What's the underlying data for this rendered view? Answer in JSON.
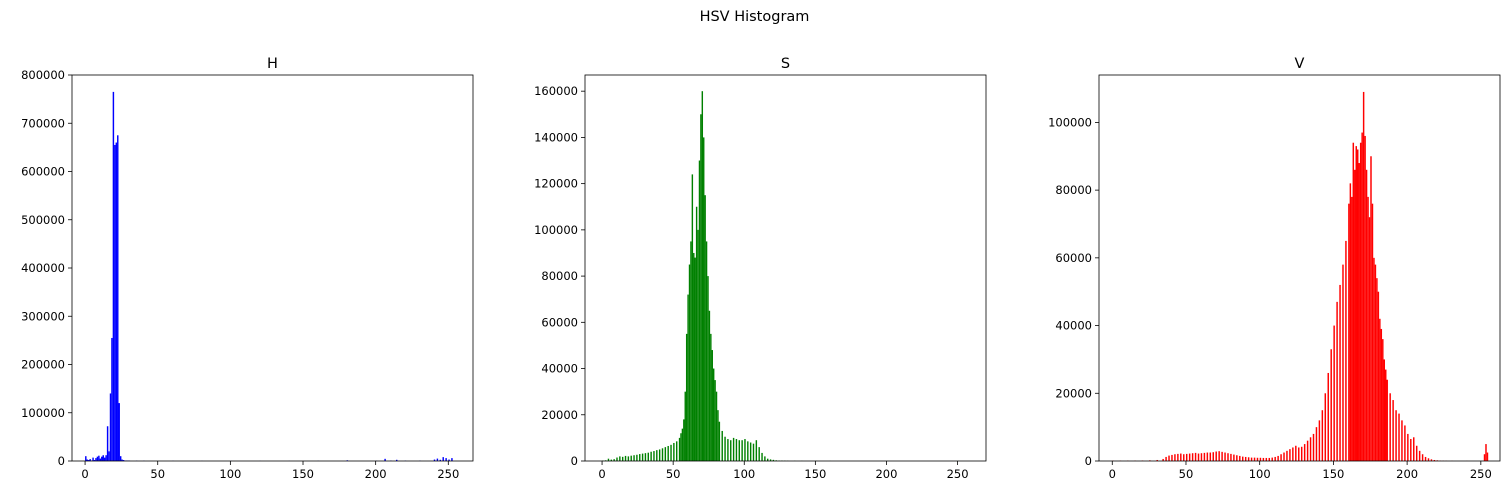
{
  "figure": {
    "suptitle": "HSV Histogram"
  },
  "chart_data": [
    {
      "type": "bar",
      "title": "H",
      "xlabel": "",
      "ylabel": "",
      "xlim": [
        -9,
        267
      ],
      "ylim": [
        0,
        800000
      ],
      "xticks": [
        0,
        50,
        100,
        150,
        200,
        250
      ],
      "yticks": [
        0,
        100000,
        200000,
        300000,
        400000,
        500000,
        600000,
        700000,
        800000
      ],
      "grid": false,
      "color": "#0000ff",
      "series": [
        {
          "x": [
            0,
            1,
            2,
            3,
            4,
            5,
            6,
            7,
            8,
            9,
            10,
            11,
            12,
            13,
            14,
            15,
            16,
            17,
            18,
            19,
            20,
            21,
            22,
            23,
            24,
            25,
            26,
            27,
            28,
            29,
            30,
            35,
            40,
            60,
            80,
            100,
            120,
            140,
            160,
            180,
            200,
            206,
            210,
            214,
            220,
            230,
            240,
            242,
            244,
            246,
            248,
            250,
            252,
            255
          ],
          "values": [
            10000,
            3000,
            2000,
            4000,
            1000,
            7000,
            2000,
            6000,
            9000,
            11000,
            5000,
            9000,
            12000,
            7000,
            12000,
            72000,
            20000,
            140000,
            255000,
            765000,
            655000,
            660000,
            675000,
            120000,
            10000,
            3000,
            2000,
            1000,
            1000,
            1000,
            800,
            600,
            500,
            400,
            300,
            300,
            300,
            300,
            400,
            1500,
            500,
            4500,
            1000,
            2500,
            800,
            800,
            3000,
            5000,
            2500,
            8000,
            6000,
            3000,
            6000,
            0
          ]
        }
      ]
    },
    {
      "type": "bar",
      "title": "S",
      "xlabel": "",
      "ylabel": "",
      "xlim": [
        -12,
        270
      ],
      "ylim": [
        0,
        167000
      ],
      "xticks": [
        0,
        50,
        100,
        150,
        200,
        250
      ],
      "yticks": [
        0,
        20000,
        40000,
        60000,
        80000,
        100000,
        120000,
        140000,
        160000
      ],
      "grid": false,
      "color": "#008000",
      "series": [
        {
          "x": [
            0,
            2,
            4,
            6,
            8,
            10,
            12,
            14,
            16,
            18,
            20,
            22,
            24,
            26,
            28,
            30,
            32,
            34,
            36,
            38,
            40,
            42,
            44,
            46,
            48,
            50,
            52,
            54,
            55,
            56,
            57,
            58,
            59,
            60,
            61,
            62,
            63,
            64,
            65,
            66,
            67,
            68,
            69,
            70,
            71,
            72,
            73,
            74,
            75,
            76,
            77,
            78,
            79,
            80,
            81,
            82,
            84,
            86,
            88,
            90,
            92,
            94,
            96,
            98,
            100,
            102,
            104,
            106,
            108,
            110,
            112,
            114,
            116,
            118,
            120,
            122,
            124,
            126,
            128,
            130,
            135,
            140,
            150,
            160,
            200,
            250
          ],
          "values": [
            200,
            300,
            1000,
            600,
            800,
            1500,
            2000,
            1800,
            2200,
            2000,
            2300,
            2500,
            2700,
            3000,
            3200,
            3400,
            3600,
            4000,
            4300,
            4700,
            5000,
            5500,
            6000,
            6500,
            7000,
            7800,
            8500,
            10000,
            12000,
            14000,
            18000,
            30000,
            55000,
            72000,
            85000,
            95000,
            124000,
            90000,
            88000,
            110000,
            100000,
            130000,
            150000,
            160000,
            140000,
            115000,
            95000,
            80000,
            65000,
            55000,
            48000,
            40000,
            35000,
            30000,
            22000,
            17000,
            13000,
            10500,
            9500,
            9000,
            10000,
            9500,
            9000,
            9000,
            9500,
            8500,
            8000,
            7500,
            9000,
            6000,
            3500,
            2000,
            1000,
            700,
            500,
            300,
            200,
            200,
            150,
            100,
            80,
            60,
            50,
            40,
            30,
            20
          ]
        }
      ]
    },
    {
      "type": "bar",
      "title": "V",
      "xlabel": "",
      "ylabel": "",
      "xlim": [
        -9,
        263
      ],
      "ylim": [
        0,
        114000
      ],
      "xticks": [
        0,
        50,
        100,
        150,
        200,
        250
      ],
      "yticks": [
        0,
        20000,
        40000,
        60000,
        80000,
        100000
      ],
      "grid": false,
      "color": "#ff0000",
      "series": [
        {
          "x": [
            0,
            5,
            10,
            15,
            20,
            25,
            30,
            34,
            36,
            38,
            40,
            42,
            44,
            46,
            48,
            50,
            52,
            54,
            56,
            58,
            60,
            62,
            64,
            66,
            68,
            70,
            72,
            74,
            76,
            78,
            80,
            82,
            84,
            86,
            88,
            90,
            92,
            94,
            96,
            98,
            100,
            102,
            104,
            106,
            108,
            110,
            112,
            114,
            116,
            118,
            120,
            122,
            124,
            126,
            128,
            130,
            132,
            134,
            136,
            138,
            140,
            142,
            144,
            146,
            148,
            150,
            152,
            154,
            156,
            158,
            160,
            161,
            162,
            163,
            164,
            165,
            166,
            167,
            168,
            169,
            170,
            171,
            172,
            173,
            174,
            175,
            176,
            177,
            178,
            179,
            180,
            181,
            182,
            183,
            184,
            185,
            186,
            188,
            190,
            192,
            194,
            196,
            198,
            200,
            202,
            204,
            206,
            208,
            210,
            212,
            214,
            216,
            218,
            220,
            222,
            224,
            226,
            230,
            240,
            250,
            252,
            253,
            254,
            255
          ],
          "values": [
            100,
            100,
            100,
            100,
            150,
            200,
            300,
            600,
            1200,
            1600,
            1800,
            2000,
            2100,
            2200,
            2000,
            2100,
            2200,
            2300,
            2400,
            2200,
            2300,
            2400,
            2500,
            2500,
            2600,
            2800,
            2900,
            2700,
            2500,
            2300,
            2100,
            1900,
            1700,
            1500,
            1300,
            1200,
            1100,
            1000,
            1000,
            950,
            950,
            900,
            900,
            900,
            1000,
            1200,
            1500,
            2000,
            2500,
            3000,
            3500,
            4000,
            4500,
            4000,
            4200,
            5000,
            6000,
            7000,
            8000,
            10000,
            12000,
            15000,
            20000,
            26000,
            33000,
            40000,
            47000,
            52000,
            58000,
            65000,
            76000,
            82000,
            78000,
            94000,
            86000,
            93000,
            92000,
            88000,
            94000,
            97000,
            109000,
            96000,
            86000,
            78000,
            72000,
            90000,
            76000,
            60000,
            58000,
            54000,
            50000,
            42000,
            39000,
            36000,
            30000,
            27000,
            24000,
            20000,
            18000,
            15000,
            14000,
            12000,
            10500,
            8000,
            6500,
            7000,
            4500,
            3000,
            2000,
            1200,
            800,
            500,
            300,
            200,
            100,
            80,
            60,
            40,
            30,
            20,
            2000,
            5000,
            2500,
            0
          ]
        }
      ]
    }
  ]
}
